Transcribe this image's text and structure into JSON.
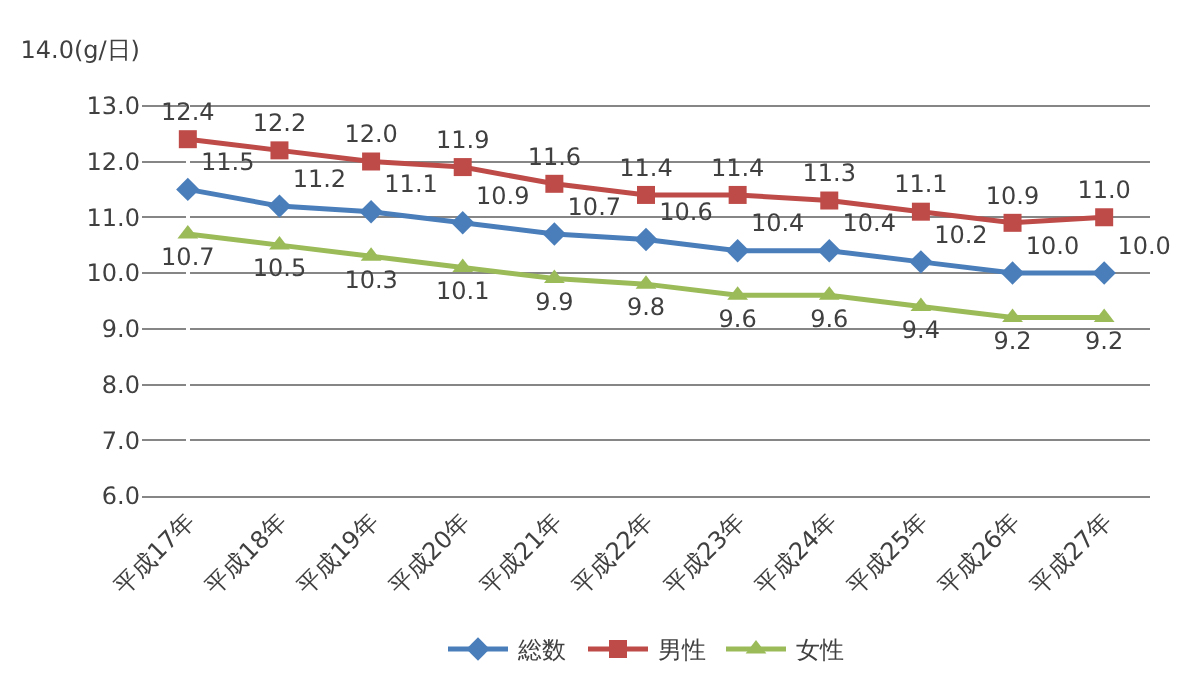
{
  "chart_data": {
    "type": "line",
    "categories": [
      "平成17年",
      "平成18年",
      "平成19年",
      "平成20年",
      "平成21年",
      "平成22年",
      "平成23年",
      "平成24年",
      "平成25年",
      "平成26年",
      "平成27年"
    ],
    "series": [
      {
        "name": "総数",
        "color": "#4a7ebb",
        "marker": "diamond",
        "values": [
          11.5,
          11.2,
          11.1,
          10.9,
          10.7,
          10.6,
          10.4,
          10.4,
          10.2,
          10.0,
          10.0
        ],
        "value_labels": [
          "11.5",
          "11.2",
          "11.1",
          "10.9",
          "10.7",
          "10.6",
          "10.4",
          "10.4",
          "10.2",
          "10.0",
          "10.0"
        ]
      },
      {
        "name": "男性",
        "color": "#be4b48",
        "marker": "square",
        "values": [
          12.4,
          12.2,
          12.0,
          11.9,
          11.6,
          11.4,
          11.4,
          11.3,
          11.1,
          10.9,
          11.0
        ],
        "value_labels": [
          "12.4",
          "12.2",
          "12.0",
          "11.9",
          "11.6",
          "11.4",
          "11.4",
          "11.3",
          "11.1",
          "10.9",
          "11.0"
        ]
      },
      {
        "name": "女性",
        "color": "#9bbb59",
        "marker": "triangle",
        "values": [
          10.7,
          10.5,
          10.3,
          10.1,
          9.9,
          9.8,
          9.6,
          9.6,
          9.4,
          9.2,
          9.2
        ],
        "value_labels": [
          "10.7",
          "10.5",
          "10.3",
          "10.1",
          "9.9",
          "9.8",
          "9.6",
          "9.6",
          "9.4",
          "9.2",
          "9.2"
        ]
      }
    ],
    "ylim": [
      6,
      14
    ],
    "yticks": [
      {
        "value": 6,
        "label": "6.0"
      },
      {
        "value": 7,
        "label": "7.0"
      },
      {
        "value": 8,
        "label": "8.0"
      },
      {
        "value": 9,
        "label": "9.0"
      },
      {
        "value": 10,
        "label": "10.0"
      },
      {
        "value": 11,
        "label": "11.0"
      },
      {
        "value": 12,
        "label": "12.0"
      },
      {
        "value": 13,
        "label": "13.0"
      },
      {
        "value": 14,
        "label": "14.0(g/日)"
      }
    ],
    "grid": "y",
    "legend": "bottom",
    "line_style": "solid"
  }
}
